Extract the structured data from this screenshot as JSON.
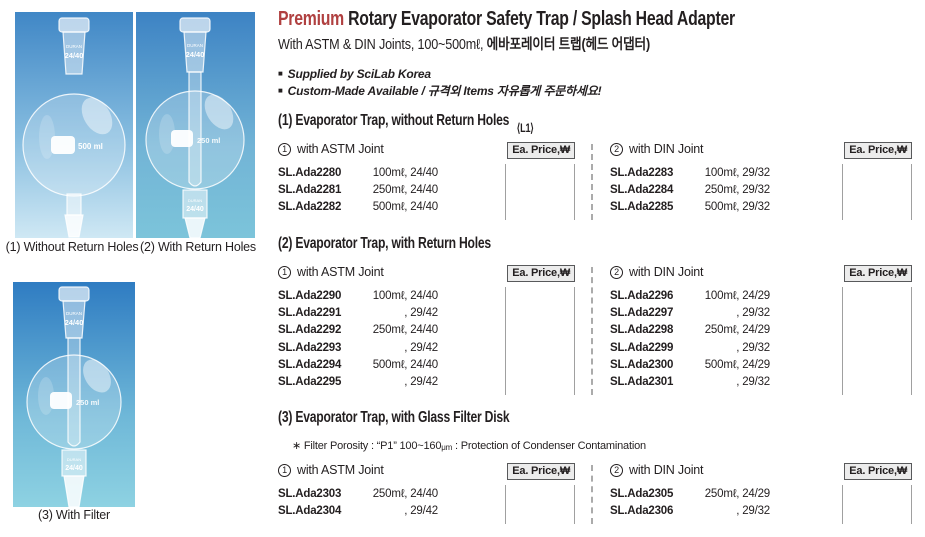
{
  "header": {
    "brand_word": "Premium",
    "title_rest": " Rotary Evaporator Safety Trap / Splash Head Adapter",
    "subtitle_en": "With ASTM & DIN Joints, 100~500mℓ, ",
    "subtitle_ko": "에바포레이터 트랩(헤드 어댑터)",
    "accent_color": "#b04040",
    "text_color": "#231f20",
    "bullets": [
      "Supplied by SciLab Korea",
      "Custom-Made Available / 규격외 Items 자유롭게 주문하세요!"
    ]
  },
  "photos": [
    {
      "caption": "(1) Without Return Holes",
      "brand": "DURAN",
      "joint_top": "24/40",
      "volume": "500 ml"
    },
    {
      "caption": "(2) With Return Holes",
      "brand": "DURAN",
      "joint_top": "24/40",
      "joint_bottom": "24/40",
      "volume": "250 ml"
    },
    {
      "caption": "(3) With Filter",
      "brand": "DURAN",
      "joint_top": "24/40",
      "joint_bottom": "24/40",
      "volume": "250 ml"
    }
  ],
  "price_header": "Ea. Price,₩",
  "sections": [
    {
      "heading": "(1) Evaporator Trap, without Return Holes",
      "tag": "⟨L1⟩",
      "columns": [
        {
          "num": "1",
          "label": "with ASTM Joint",
          "rows": [
            {
              "cat": "SL.Ada2280",
              "size": "100mℓ, 24/40"
            },
            {
              "cat": "SL.Ada2281",
              "size": "250mℓ, 24/40"
            },
            {
              "cat": "SL.Ada2282",
              "size": "500mℓ, 24/40"
            }
          ]
        },
        {
          "num": "2",
          "label": "with DIN Joint",
          "rows": [
            {
              "cat": "SL.Ada2283",
              "size": "100mℓ, 29/32"
            },
            {
              "cat": "SL.Ada2284",
              "size": "250mℓ, 29/32"
            },
            {
              "cat": "SL.Ada2285",
              "size": "500mℓ, 29/32"
            }
          ]
        }
      ]
    },
    {
      "heading": "(2) Evaporator Trap, with Return Holes",
      "columns": [
        {
          "num": "1",
          "label": "with ASTM Joint",
          "rows": [
            {
              "cat": "SL.Ada2290",
              "size": "100mℓ, 24/40"
            },
            {
              "cat": "SL.Ada2291",
              "size": ", 29/42"
            },
            {
              "cat": "SL.Ada2292",
              "size": "250mℓ, 24/40"
            },
            {
              "cat": "SL.Ada2293",
              "size": ", 29/42"
            },
            {
              "cat": "SL.Ada2294",
              "size": "500mℓ, 24/40"
            },
            {
              "cat": "SL.Ada2295",
              "size": ", 29/42"
            }
          ]
        },
        {
          "num": "2",
          "label": "with DIN Joint",
          "rows": [
            {
              "cat": "SL.Ada2296",
              "size": "100mℓ, 24/29"
            },
            {
              "cat": "SL.Ada2297",
              "size": ", 29/32"
            },
            {
              "cat": "SL.Ada2298",
              "size": "250mℓ, 24/29"
            },
            {
              "cat": "SL.Ada2299",
              "size": ", 29/32"
            },
            {
              "cat": "SL.Ada2300",
              "size": "500mℓ, 24/29"
            },
            {
              "cat": "SL.Ada2301",
              "size": ", 29/32"
            }
          ]
        }
      ]
    },
    {
      "heading": "(3) Evaporator Trap, with Glass Filter Disk",
      "note_pre": "∗ Filter Porosity : “P1” 100~160",
      "note_unit": "μm",
      "note_post": " : Protection of Condenser Contamination",
      "columns": [
        {
          "num": "1",
          "label": "with ASTM Joint",
          "rows": [
            {
              "cat": "SL.Ada2303",
              "size": "250mℓ, 24/40"
            },
            {
              "cat": "SL.Ada2304",
              "size": ", 29/42"
            }
          ]
        },
        {
          "num": "2",
          "label": "with DIN Joint",
          "rows": [
            {
              "cat": "SL.Ada2305",
              "size": "250mℓ, 24/29"
            },
            {
              "cat": "SL.Ada2306",
              "size": ", 29/32"
            }
          ]
        }
      ]
    }
  ]
}
